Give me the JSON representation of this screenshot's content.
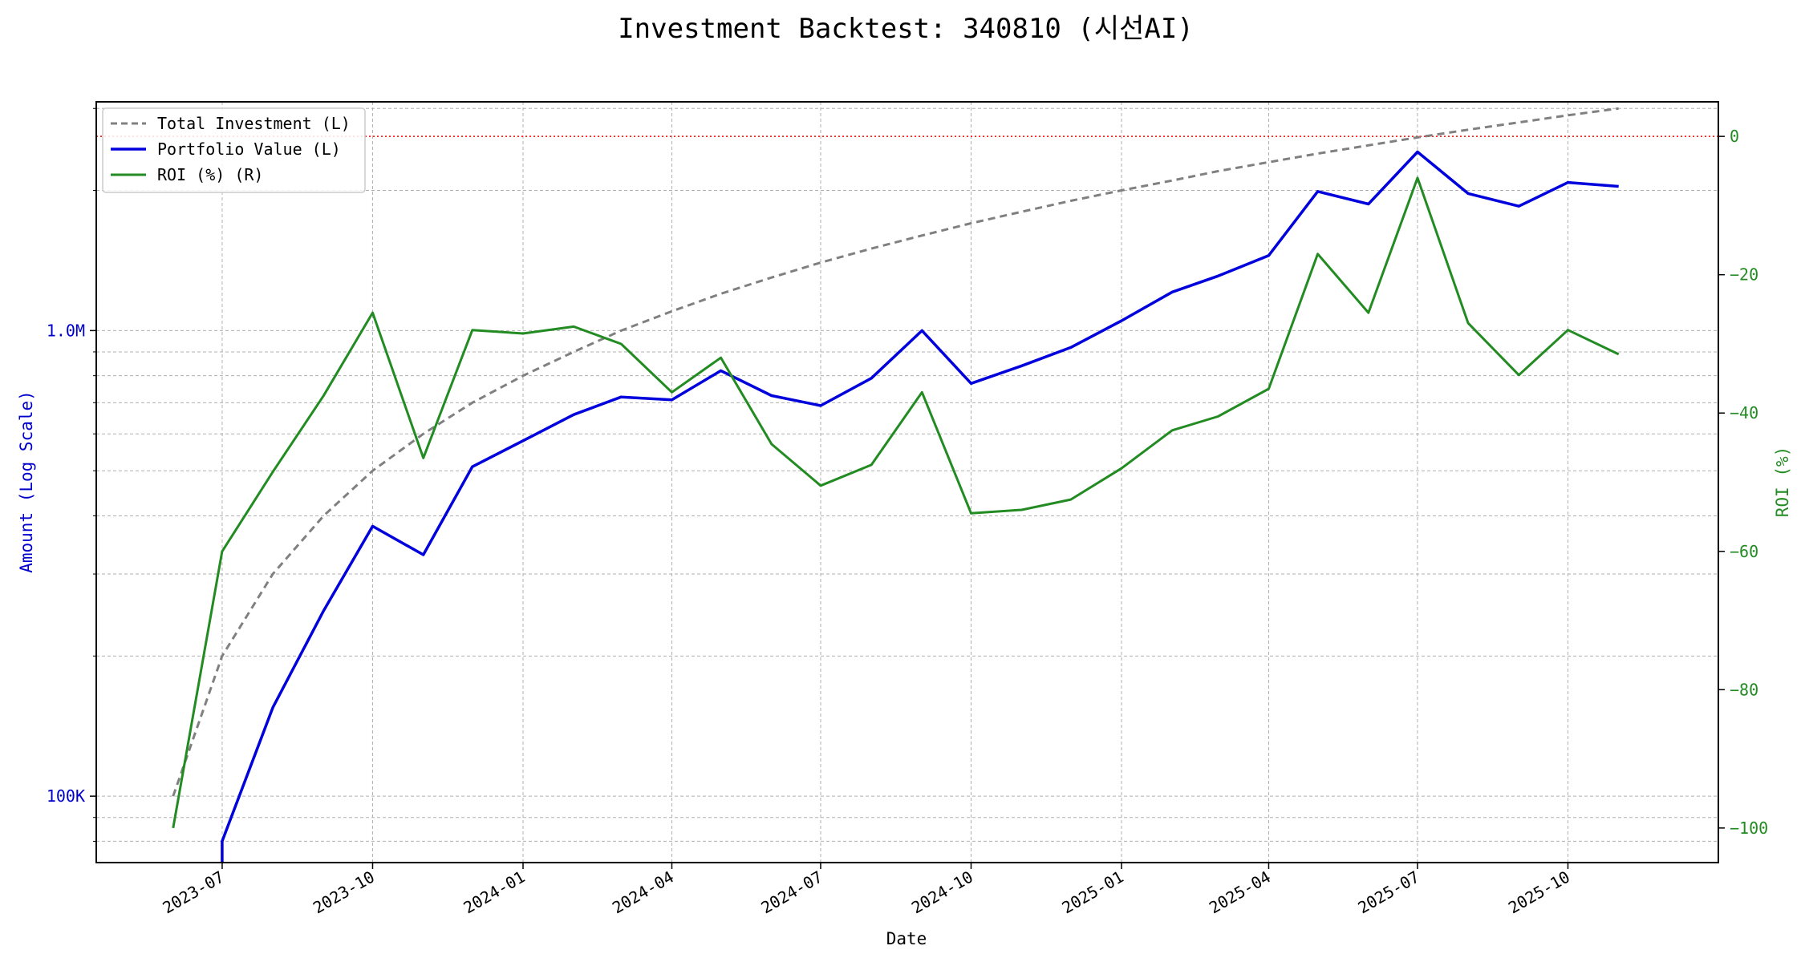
{
  "chart_data": {
    "type": "line",
    "title": "Investment Backtest: 340810 (시선AI)",
    "xlabel": "Date",
    "ylabel_left": "Amount (Log Scale)",
    "ylabel_right": "ROI (%)",
    "left_scale": "log",
    "left_ylim": [
      72000,
      3100000
    ],
    "right_ylim": [
      -105,
      5
    ],
    "x_range": [
      "2023-04-15",
      "2026-01-01"
    ],
    "grid": true,
    "legend_position": "top-left",
    "reference_line": {
      "axis": "right",
      "value": 0,
      "color": "#ff0000",
      "style": "dotted"
    },
    "x_ticks": [
      {
        "date": "2023-07-01",
        "label": "2023-07"
      },
      {
        "date": "2023-10-01",
        "label": "2023-10"
      },
      {
        "date": "2024-01-01",
        "label": "2024-01"
      },
      {
        "date": "2024-04-01",
        "label": "2024-04"
      },
      {
        "date": "2024-07-01",
        "label": "2024-07"
      },
      {
        "date": "2024-10-01",
        "label": "2024-10"
      },
      {
        "date": "2025-01-01",
        "label": "2025-01"
      },
      {
        "date": "2025-04-01",
        "label": "2025-04"
      },
      {
        "date": "2025-07-01",
        "label": "2025-07"
      },
      {
        "date": "2025-10-01",
        "label": "2025-10"
      }
    ],
    "left_ticks": [
      {
        "value": 100000,
        "label": "100K"
      },
      {
        "value": 1000000,
        "label": "1.0M"
      }
    ],
    "left_minor_ticks": [
      80000,
      90000,
      200000,
      300000,
      400000,
      500000,
      600000,
      700000,
      800000,
      900000,
      2000000,
      3000000
    ],
    "right_ticks": [
      {
        "value": 0,
        "label": "0"
      },
      {
        "value": -20,
        "label": "−20"
      },
      {
        "value": -40,
        "label": "−40"
      },
      {
        "value": -60,
        "label": "−60"
      },
      {
        "value": -80,
        "label": "−80"
      },
      {
        "value": -100,
        "label": "−100"
      }
    ],
    "x": [
      "2023-06-01",
      "2023-07-01",
      "2023-08-01",
      "2023-09-01",
      "2023-10-01",
      "2023-11-01",
      "2023-12-01",
      "2024-01-01",
      "2024-02-01",
      "2024-03-01",
      "2024-04-01",
      "2024-05-01",
      "2024-06-01",
      "2024-07-01",
      "2024-08-01",
      "2024-09-01",
      "2024-10-01",
      "2024-11-01",
      "2024-12-01",
      "2025-01-01",
      "2025-02-01",
      "2025-03-01",
      "2025-04-01",
      "2025-05-01",
      "2025-06-01",
      "2025-07-01",
      "2025-08-01",
      "2025-09-01",
      "2025-10-01",
      "2025-11-01"
    ],
    "series": [
      {
        "name": "Total Investment (L)",
        "axis": "left",
        "color": "#808080",
        "style": "dashed",
        "values": [
          100000,
          200000,
          300000,
          400000,
          500000,
          600000,
          700000,
          800000,
          900000,
          1000000,
          1100000,
          1200000,
          1300000,
          1400000,
          1500000,
          1600000,
          1700000,
          1800000,
          1900000,
          2000000,
          2100000,
          2200000,
          2300000,
          2400000,
          2500000,
          2600000,
          2700000,
          2800000,
          2900000,
          3000000
        ]
      },
      {
        "name": "Portfolio Value (L)",
        "axis": "left",
        "color": "#0000dd",
        "style": "solid",
        "values": [
          null,
          80000,
          155000,
          250000,
          380000,
          330000,
          510000,
          580000,
          660000,
          720000,
          710000,
          820000,
          725000,
          690000,
          790000,
          1000000,
          770000,
          840000,
          920000,
          1050000,
          1210000,
          1310000,
          1450000,
          1990000,
          1870000,
          2420000,
          1970000,
          1850000,
          2080000,
          2040000
        ]
      },
      {
        "name": "ROI (%) (R)",
        "axis": "right",
        "color": "#228b22",
        "style": "solid",
        "values": [
          -100,
          -60,
          -48.5,
          -37.5,
          -25.5,
          -46.5,
          -28,
          -28.5,
          -27.5,
          -30,
          -37,
          -32,
          -44.5,
          -50.5,
          -47.5,
          -37,
          -54.5,
          -54,
          -52.5,
          -48,
          -42.5,
          -40.5,
          -36.5,
          -17,
          -25.5,
          -6,
          -27,
          -34.5,
          -28,
          -31.5
        ]
      }
    ]
  }
}
